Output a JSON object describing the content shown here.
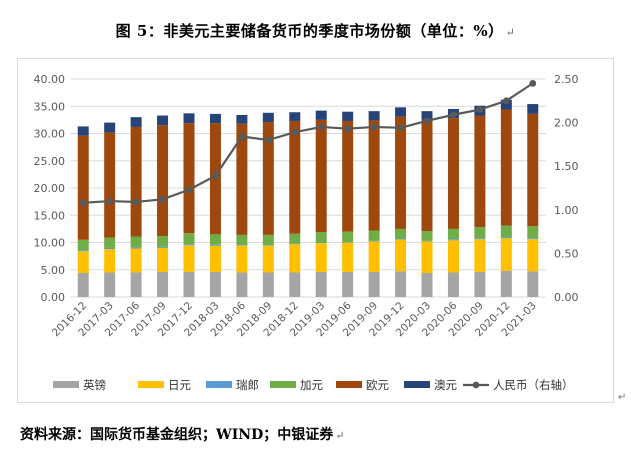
{
  "title": "图 5：非美元主要储备货币的季度市场份额（单位：%）",
  "title_mark": "↵",
  "source": "资料来源：国际货币基金组织；WIND；中银证券",
  "source_mark": "↵",
  "corner_mark": "↵",
  "chart_data": {
    "type": "bar",
    "stacked": true,
    "categories": [
      "2016-12",
      "2017-03",
      "2017-06",
      "2017-09",
      "2017-12",
      "2018-03",
      "2018-06",
      "2018-09",
      "2018-12",
      "2019-03",
      "2019-06",
      "2019-09",
      "2019-12",
      "2020-03",
      "2020-06",
      "2020-09",
      "2020-12",
      "2021-03"
    ],
    "series": [
      {
        "name": "英镑",
        "color": "#a5a5a5",
        "values": [
          4.4,
          4.5,
          4.5,
          4.6,
          4.6,
          4.6,
          4.5,
          4.5,
          4.5,
          4.6,
          4.6,
          4.6,
          4.7,
          4.4,
          4.5,
          4.6,
          4.8,
          4.7
        ]
      },
      {
        "name": "日元",
        "color": "#ffc000",
        "values": [
          4.0,
          4.3,
          4.4,
          4.4,
          4.9,
          4.8,
          4.9,
          4.9,
          5.2,
          5.3,
          5.4,
          5.6,
          5.8,
          5.8,
          5.9,
          6.0,
          6.0,
          5.9
        ]
      },
      {
        "name": "瑞郎",
        "color": "#5b9bd5",
        "values": [
          0.2,
          0.2,
          0.2,
          0.2,
          0.2,
          0.2,
          0.1,
          0.1,
          0.1,
          0.1,
          0.1,
          0.1,
          0.1,
          0.1,
          0.2,
          0.2,
          0.2,
          0.2
        ]
      },
      {
        "name": "加元",
        "color": "#70ad47",
        "values": [
          1.9,
          1.9,
          2.0,
          2.0,
          2.0,
          1.9,
          1.9,
          1.9,
          1.8,
          1.9,
          1.9,
          1.9,
          1.9,
          1.8,
          1.9,
          2.0,
          2.1,
          2.2
        ]
      },
      {
        "name": "欧元",
        "color": "#9e480e",
        "values": [
          19.1,
          19.3,
          20.1,
          20.3,
          20.2,
          20.4,
          20.4,
          20.7,
          20.7,
          20.6,
          20.3,
          20.2,
          20.6,
          20.4,
          20.3,
          20.5,
          21.3,
          20.6
        ]
      },
      {
        "name": "澳元",
        "color": "#264478",
        "values": [
          1.7,
          1.8,
          1.8,
          1.8,
          1.8,
          1.7,
          1.6,
          1.7,
          1.6,
          1.7,
          1.7,
          1.7,
          1.7,
          1.6,
          1.7,
          1.8,
          1.8,
          1.8
        ]
      }
    ],
    "line_series": {
      "name": "人民币（右轴）",
      "color": "#595959",
      "values": [
        1.08,
        1.1,
        1.09,
        1.12,
        1.23,
        1.39,
        1.84,
        1.8,
        1.89,
        1.95,
        1.93,
        1.95,
        1.94,
        2.02,
        2.09,
        2.15,
        2.25,
        2.45
      ]
    },
    "ylim_left": [
      0,
      40
    ],
    "yticks_left": [
      "0.00",
      "5.00",
      "10.00",
      "15.00",
      "20.00",
      "25.00",
      "30.00",
      "35.00",
      "40.00"
    ],
    "ylim_right": [
      0,
      2.5
    ],
    "yticks_right": [
      "0.00",
      "0.50",
      "1.00",
      "1.50",
      "2.00",
      "2.50"
    ],
    "grid": true,
    "legend_position": "bottom"
  }
}
